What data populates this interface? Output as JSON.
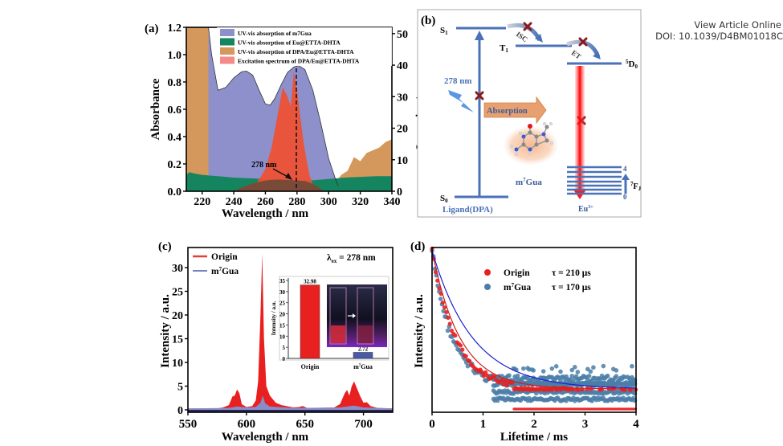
{
  "header": {
    "view_article": "View Article Online",
    "doi": "DOI: 10.1039/D4BM01018C"
  },
  "colors": {
    "m7gua_absorption": "#8e90cc",
    "eu_etta_absorption": "#14855e",
    "dpa_eu_absorption": "#d4985c",
    "excitation": "#f05030",
    "origin_red": "#e82020",
    "m7gua_blue": "#4a5aa8",
    "scheme_blue": "#4a72b8",
    "cross_red": "#8a1a1a",
    "lifetime_blue": "#4a7ea8"
  },
  "chart_data": [
    {
      "panel_label": "(a)",
      "type": "area",
      "xlabel": "Wavelength / nm",
      "ylabel": "Absorbance",
      "ylabel_right": "Intensity / a.u.",
      "xlim": [
        210,
        340
      ],
      "ylim": [
        0,
        1.2
      ],
      "ylim_right": [
        0,
        52
      ],
      "xticks": [
        "220",
        "240",
        "260",
        "280",
        "300",
        "320",
        "340"
      ],
      "yticks": [
        "0.0",
        "0.2",
        "0.4",
        "0.6",
        "0.8",
        "1.0",
        "1.2"
      ],
      "yticks_right": [
        "0",
        "10",
        "20",
        "30",
        "40",
        "50"
      ],
      "legend": [
        "UV-vis absorption of m7Gua",
        "UV-vis absorption of Eu@ETTA-DHTA",
        "UV-vis absorption of DPA/Eu@ETTA-DHTA",
        "Excitation spectrum of DPA/Eu@ETTA-DHTA"
      ],
      "legend_position": "top-right",
      "annotation": "278 nm",
      "series": [
        {
          "name": "UV-vis absorption of m7Gua",
          "axis": "left",
          "x": [
            224,
            226,
            230,
            235,
            240,
            245,
            248,
            252,
            256,
            260,
            263,
            266,
            270,
            274,
            278,
            281,
            285,
            290,
            295,
            300,
            304,
            306
          ],
          "values": [
            1.2,
            1.0,
            0.74,
            0.76,
            0.83,
            0.875,
            0.88,
            0.85,
            0.74,
            0.64,
            0.63,
            0.68,
            0.78,
            0.87,
            0.91,
            0.92,
            0.89,
            0.74,
            0.5,
            0.24,
            0.1,
            0.04
          ]
        },
        {
          "name": "UV-vis absorption of Eu@ETTA-DHTA",
          "axis": "left",
          "x": [
            210,
            212,
            215,
            220,
            225,
            230,
            240,
            250,
            260,
            270,
            280,
            290,
            300,
            310,
            320,
            330,
            340
          ],
          "values": [
            0.12,
            0.14,
            0.13,
            0.12,
            0.115,
            0.11,
            0.1,
            0.095,
            0.09,
            0.085,
            0.08,
            0.08,
            0.09,
            0.1,
            0.105,
            0.11,
            0.11
          ]
        },
        {
          "name": "UV-vis absorption of DPA/Eu@ETTA-DHTA",
          "axis": "left",
          "x": [
            210,
            220,
            224,
            226,
            228,
            230,
            232,
            234,
            236,
            238,
            240,
            244,
            248,
            252,
            256,
            260,
            264,
            268,
            272,
            276,
            280,
            284,
            288,
            292,
            296,
            300,
            304,
            308,
            312,
            316,
            320,
            324,
            328,
            332,
            336,
            340
          ],
          "values": [
            1.2,
            1.2,
            1.2,
            0.95,
            0.85,
            0.7,
            0.55,
            0.4,
            0.3,
            0.22,
            0.2,
            0.25,
            0.22,
            0.3,
            0.35,
            0.45,
            0.58,
            0.65,
            0.6,
            0.55,
            0.45,
            0.35,
            0.22,
            0.15,
            0.12,
            0.08,
            0.06,
            0.12,
            0.15,
            0.25,
            0.22,
            0.28,
            0.3,
            0.32,
            0.36,
            0.38
          ]
        },
        {
          "name": "Excitation spectrum of DPA/Eu@ETTA-DHTA",
          "axis": "right",
          "x": [
            245,
            250,
            255,
            260,
            264,
            268,
            271,
            274,
            276,
            278,
            280,
            282,
            284,
            286,
            288,
            290,
            292
          ],
          "values": [
            0,
            1,
            3,
            7,
            14,
            25,
            33,
            30,
            27,
            38,
            32,
            24,
            16,
            10,
            5,
            2,
            0
          ]
        }
      ]
    },
    {
      "panel_label": "(b)",
      "type": "diagram",
      "ylabel": "Intensity / a.u.",
      "levels": {
        "s1": "S1",
        "s0": "S0",
        "t1": "T1",
        "d0": "5D0",
        "fj": "7FJ",
        "fj_top": "4",
        "fj_bottom": "0"
      },
      "labels": {
        "excitation": "278 nm",
        "isc": "ISC",
        "et": "ET",
        "absorption": "Absorption",
        "molecule": "m7Gua",
        "ligand": "Ligand(DPA)",
        "eu": "Eu3+"
      }
    },
    {
      "panel_label": "(c)",
      "type": "area",
      "xlabel": "Wavelength / nm",
      "ylabel": "Intensity / a.u.",
      "xlim": [
        550,
        725
      ],
      "ylim": [
        0,
        34
      ],
      "xticks": [
        "550",
        "600",
        "650",
        "700"
      ],
      "yticks": [
        "0",
        "5",
        "10",
        "15",
        "20",
        "25",
        "30"
      ],
      "legend": [
        "Origin",
        "m7Gua"
      ],
      "legend_position": "top-left",
      "annotation": "λex = 278 nm",
      "series": [
        {
          "name": "Origin",
          "x": [
            550,
            575,
            580,
            585,
            588,
            590,
            592,
            594,
            596,
            600,
            605,
            608,
            610,
            612,
            613.5,
            615,
            617,
            620,
            625,
            630,
            640,
            645,
            648,
            652,
            660,
            675,
            680,
            684,
            686,
            688,
            690,
            692,
            694,
            697,
            700,
            703,
            706,
            712,
            725
          ],
          "values": [
            0.3,
            0.3,
            0.5,
            1,
            2.8,
            3,
            4.3,
            3.5,
            1.2,
            0.6,
            0.8,
            2,
            6,
            20,
            33,
            15,
            5,
            3,
            1.5,
            1,
            0.5,
            0.6,
            0.8,
            0.4,
            0.4,
            0.5,
            1.2,
            3.5,
            4.2,
            3,
            5,
            6,
            4.8,
            3,
            1.5,
            1.6,
            0.8,
            0.4,
            0.3
          ]
        },
        {
          "name": "m7Gua",
          "x": [
            550,
            585,
            592,
            600,
            608,
            612,
            614,
            616,
            620,
            640,
            680,
            692,
            700,
            725
          ],
          "values": [
            0.3,
            0.4,
            0.7,
            0.5,
            0.6,
            1.5,
            3,
            1.4,
            0.7,
            0.4,
            0.5,
            0.9,
            0.5,
            0.3
          ]
        }
      ],
      "inset": {
        "type": "bar",
        "ylabel": "Intensity / a.u.",
        "ylim": [
          0,
          35
        ],
        "yticks": [
          "0",
          "5",
          "10",
          "15",
          "20",
          "25",
          "30",
          "35"
        ],
        "categories": [
          "Origin",
          "m7Gua"
        ],
        "values": [
          32.98,
          2.72
        ],
        "value_labels": [
          "32.98",
          "2.72"
        ]
      }
    },
    {
      "panel_label": "(d)",
      "type": "scatter",
      "xlabel": "Lifetime / ms",
      "ylabel": "Intensity / a.u.",
      "xlim": [
        0,
        4
      ],
      "xticks": [
        "0",
        "1",
        "2",
        "3",
        "4"
      ],
      "legend": [
        {
          "name": "Origin",
          "tau": "τ = 210 μs"
        },
        {
          "name": "m7Gua",
          "tau": "τ = 170 μs"
        }
      ],
      "legend_position": "top-right",
      "series": [
        {
          "name": "Origin",
          "tau_us": 210
        },
        {
          "name": "m7Gua",
          "tau_us": 170
        }
      ]
    }
  ]
}
